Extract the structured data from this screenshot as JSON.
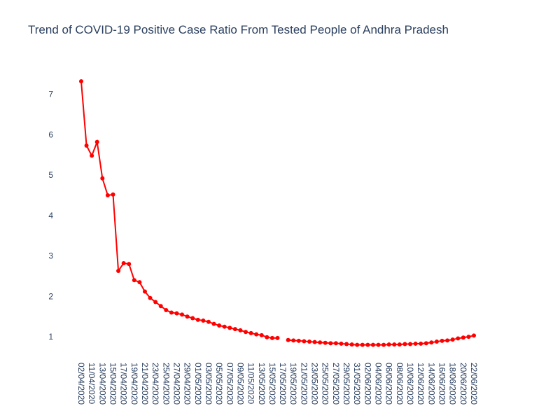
{
  "chart_data": {
    "type": "line",
    "title": "Trend of COVID-19 Positive Case Ratio From Tested People of Andhra Pradesh",
    "xlabel": "",
    "ylabel": "",
    "ylim": [
      0.5,
      7.6
    ],
    "y_ticks": [
      "1",
      "2",
      "3",
      "4",
      "5",
      "6",
      "7"
    ],
    "x_tick_labels": [
      "02/04/2020",
      "11/04/2020",
      "13/04/2020",
      "15/04/2020",
      "17/04/2020",
      "19/04/2020",
      "21/04/2020",
      "23/04/2020",
      "25/04/2020",
      "27/04/2020",
      "29/04/2020",
      "01/05/2020",
      "03/05/2020",
      "05/05/2020",
      "07/05/2020",
      "09/05/2020",
      "11/05/2020",
      "13/05/2020",
      "15/05/2020",
      "17/05/2020",
      "19/05/2020",
      "21/05/2020",
      "23/05/2020",
      "25/05/2020",
      "27/05/2020",
      "29/05/2020",
      "31/05/2020",
      "02/06/2020",
      "04/06/2020",
      "06/06/2020",
      "08/06/2020",
      "10/06/2020",
      "12/06/2020",
      "14/06/2020",
      "16/06/2020",
      "18/06/2020",
      "20/06/2020",
      "22/06/2020"
    ],
    "color": "#ff0000",
    "grid": false,
    "series": [
      {
        "x": [
          "02/04/2020",
          "10/04/2020",
          "11/04/2020",
          "12/04/2020",
          "13/04/2020",
          "14/04/2020",
          "15/04/2020",
          "16/04/2020",
          "17/04/2020",
          "18/04/2020",
          "19/04/2020",
          "20/04/2020",
          "21/04/2020",
          "22/04/2020",
          "23/04/2020",
          "24/04/2020",
          "25/04/2020",
          "26/04/2020",
          "27/04/2020",
          "28/04/2020",
          "29/04/2020",
          "30/04/2020",
          "01/05/2020",
          "02/05/2020",
          "03/05/2020",
          "04/05/2020",
          "05/05/2020",
          "06/05/2020",
          "07/05/2020",
          "08/05/2020",
          "09/05/2020",
          "10/05/2020",
          "11/05/2020",
          "12/05/2020",
          "13/05/2020",
          "14/05/2020",
          "15/05/2020",
          "16/05/2020",
          null,
          "18/05/2020",
          "19/05/2020",
          "20/05/2020",
          "21/05/2020",
          "22/05/2020",
          "23/05/2020",
          "24/05/2020",
          "25/05/2020",
          "26/05/2020",
          "27/05/2020",
          "28/05/2020",
          "29/05/2020",
          "30/05/2020",
          "31/05/2020",
          "01/06/2020",
          "02/06/2020",
          "03/06/2020",
          "04/06/2020",
          "05/06/2020",
          "06/06/2020",
          "07/06/2020",
          "08/06/2020",
          "09/06/2020",
          "10/06/2020",
          "11/06/2020",
          "12/06/2020",
          "13/06/2020",
          "14/06/2020",
          "15/06/2020",
          "16/06/2020",
          "17/06/2020",
          "18/06/2020",
          "19/06/2020",
          "20/06/2020",
          "21/06/2020",
          "22/06/2020"
        ],
        "values": [
          7.32,
          5.73,
          5.48,
          5.82,
          4.92,
          4.5,
          4.52,
          2.63,
          2.82,
          2.8,
          2.4,
          2.35,
          2.12,
          1.96,
          1.86,
          1.76,
          1.66,
          1.6,
          1.58,
          1.55,
          1.5,
          1.46,
          1.42,
          1.4,
          1.37,
          1.32,
          1.28,
          1.25,
          1.22,
          1.19,
          1.16,
          1.12,
          1.09,
          1.06,
          1.04,
          0.99,
          0.97,
          0.97,
          null,
          0.92,
          0.91,
          0.9,
          0.89,
          0.88,
          0.87,
          0.86,
          0.85,
          0.84,
          0.84,
          0.83,
          0.82,
          0.81,
          0.8,
          0.8,
          0.8,
          0.8,
          0.8,
          0.8,
          0.81,
          0.81,
          0.81,
          0.82,
          0.82,
          0.83,
          0.83,
          0.84,
          0.86,
          0.88,
          0.9,
          0.91,
          0.93,
          0.96,
          0.98,
          1.0,
          1.03
        ]
      }
    ]
  }
}
